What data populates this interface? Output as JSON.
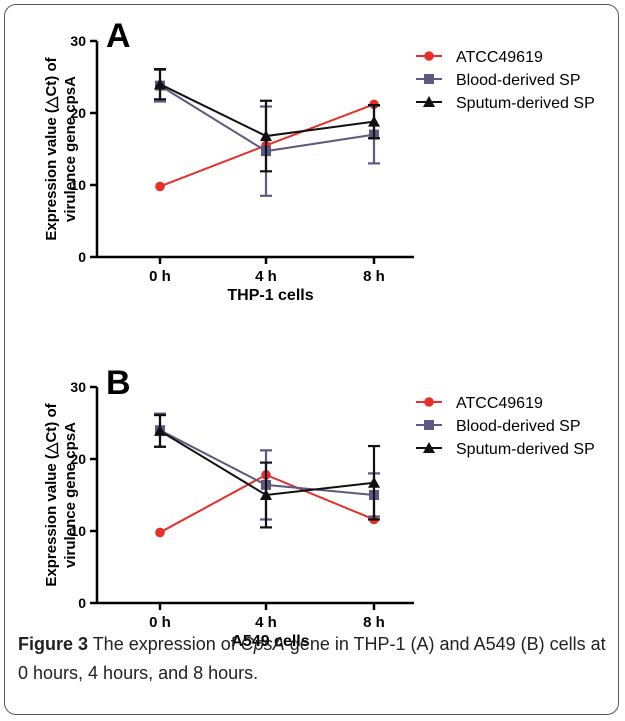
{
  "chart_data": [
    {
      "type": "line",
      "panel_label": "A",
      "xlabel": "THP-1 cells",
      "ylabel": "Expression value (△Ct) of virulence gene cpsA",
      "categories": [
        "0 h",
        "4 h",
        "8 h"
      ],
      "ylim": [
        0,
        30
      ],
      "yticks": [
        0,
        10,
        20,
        30
      ],
      "legend_position": "top-right",
      "series": [
        {
          "name": "ATCC49619",
          "color": "#e8302a",
          "marker": "circle",
          "values": [
            9.8,
            15.5,
            21.2
          ],
          "error": [
            0,
            0,
            0
          ]
        },
        {
          "name": "Blood-derived SP",
          "color": "#5c5a82",
          "marker": "square",
          "values": [
            23.8,
            14.7,
            17.0
          ],
          "error": [
            2.2,
            6.2,
            4.0
          ]
        },
        {
          "name": "Sputum-derived SP",
          "color": "#111111",
          "marker": "triangle",
          "values": [
            24.0,
            16.8,
            18.8
          ],
          "error": [
            2.1,
            4.9,
            2.3
          ]
        }
      ]
    },
    {
      "type": "line",
      "panel_label": "B",
      "xlabel": "A549 cells",
      "ylabel": "Expression value (△Ct) of virulence gene cpsA",
      "categories": [
        "0 h",
        "4 h",
        "8 h"
      ],
      "ylim": [
        0,
        30
      ],
      "yticks": [
        0,
        10,
        20,
        30
      ],
      "legend_position": "top-right",
      "series": [
        {
          "name": "ATCC49619",
          "color": "#e8302a",
          "marker": "circle",
          "values": [
            9.8,
            17.8,
            11.6
          ],
          "error": [
            0,
            0,
            0
          ]
        },
        {
          "name": "Blood-derived SP",
          "color": "#5c5a82",
          "marker": "square",
          "values": [
            24.0,
            16.4,
            15.0
          ],
          "error": [
            2.3,
            4.8,
            3.0
          ]
        },
        {
          "name": "Sputum-derived SP",
          "color": "#111111",
          "marker": "triangle",
          "values": [
            23.9,
            15.0,
            16.7
          ],
          "error": [
            2.2,
            4.5,
            5.1
          ]
        }
      ]
    }
  ],
  "caption": {
    "label": "Figure 3",
    "text_before": " The expression of ",
    "gene": "CpsA",
    "text_after": " gene in THP-1 (A) and A549 (B) cells at 0 hours, 4 hours, and 8 hours."
  }
}
